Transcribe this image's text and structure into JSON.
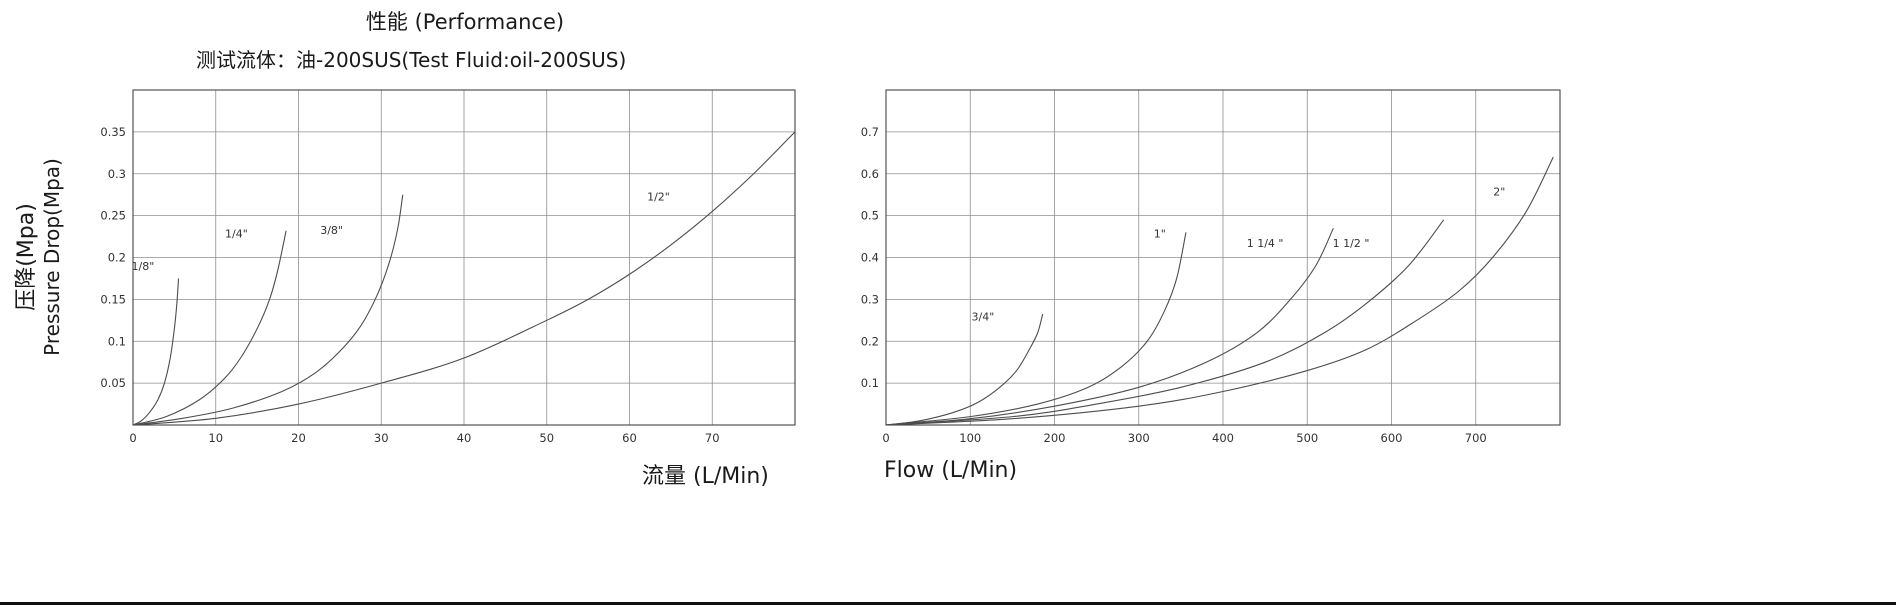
{
  "header": {
    "title": "性能  (Performance)",
    "subtitle": "测试流体：油-200SUS(Test Fluid:oil-200SUS)"
  },
  "axes": {
    "ylabel_cn": "压降(Mpa)",
    "ylabel_en": "Pressure  Drop(Mpa)",
    "xlabel_cn": "流量 (L/Min)",
    "xlabel_en": "Flow (L/Min)"
  },
  "style": {
    "curve_color": "#4d4d4d",
    "grid_color": "#8f8f8f",
    "border_color": "#444444",
    "text_color": "#333333"
  },
  "chart_data": [
    {
      "type": "line",
      "title": "Pressure drop vs flow, small sizes",
      "xlabel": "流量 (L/Min)",
      "ylabel": "压降(Mpa) Pressure Drop(Mpa)",
      "xlim": [
        0,
        80
      ],
      "ylim": [
        0,
        0.4
      ],
      "xticks": [
        0,
        10,
        20,
        30,
        40,
        50,
        60,
        70
      ],
      "yticks": [
        0.05,
        0.1,
        0.15,
        0.2,
        0.25,
        0.3,
        0.35
      ],
      "grid": true,
      "legend_position": "inline-labels",
      "series": [
        {
          "name": "1/8\"",
          "label_at": [
            1.2,
            0.185
          ],
          "points": [
            [
              0,
              0
            ],
            [
              1,
              0.005
            ],
            [
              2,
              0.015
            ],
            [
              3,
              0.03
            ],
            [
              3.8,
              0.05
            ],
            [
              4.5,
              0.08
            ],
            [
              5,
              0.115
            ],
            [
              5.3,
              0.145
            ],
            [
              5.5,
              0.175
            ]
          ]
        },
        {
          "name": "1/4\"",
          "label_at": [
            12.5,
            0.224
          ],
          "points": [
            [
              0,
              0
            ],
            [
              4,
              0.01
            ],
            [
              8,
              0.03
            ],
            [
              11,
              0.055
            ],
            [
              13,
              0.08
            ],
            [
              15,
              0.115
            ],
            [
              16.5,
              0.15
            ],
            [
              17.5,
              0.185
            ],
            [
              18.5,
              0.232
            ]
          ]
        },
        {
          "name": "3/8\"",
          "label_at": [
            24,
            0.228
          ],
          "points": [
            [
              0,
              0
            ],
            [
              6,
              0.008
            ],
            [
              12,
              0.02
            ],
            [
              18,
              0.04
            ],
            [
              22,
              0.062
            ],
            [
              25,
              0.088
            ],
            [
              27.5,
              0.118
            ],
            [
              29.5,
              0.155
            ],
            [
              31,
              0.195
            ],
            [
              32,
              0.235
            ],
            [
              32.6,
              0.275
            ]
          ]
        },
        {
          "name": "1/2\"",
          "label_at": [
            63.5,
            0.268
          ],
          "points": [
            [
              0,
              0
            ],
            [
              10,
              0.008
            ],
            [
              20,
              0.025
            ],
            [
              30,
              0.05
            ],
            [
              40,
              0.08
            ],
            [
              50,
              0.125
            ],
            [
              55,
              0.15
            ],
            [
              60,
              0.18
            ],
            [
              65,
              0.215
            ],
            [
              70,
              0.255
            ],
            [
              75,
              0.3
            ],
            [
              80,
              0.35
            ]
          ]
        }
      ]
    },
    {
      "type": "line",
      "title": "Pressure drop vs flow, large sizes",
      "xlabel": "Flow (L/Min)",
      "ylabel": "压降(Mpa) Pressure Drop(Mpa)",
      "xlim": [
        0,
        800
      ],
      "ylim": [
        0,
        0.8
      ],
      "xticks": [
        0,
        100,
        200,
        300,
        400,
        500,
        600,
        700
      ],
      "yticks": [
        0.1,
        0.2,
        0.3,
        0.4,
        0.5,
        0.6,
        0.7
      ],
      "grid": true,
      "legend_position": "inline-labels",
      "series": [
        {
          "name": "3/4\"",
          "label_at": [
            115,
            0.25
          ],
          "points": [
            [
              0,
              0
            ],
            [
              40,
              0.01
            ],
            [
              80,
              0.03
            ],
            [
              110,
              0.055
            ],
            [
              135,
              0.09
            ],
            [
              155,
              0.13
            ],
            [
              170,
              0.18
            ],
            [
              180,
              0.22
            ],
            [
              186,
              0.265
            ]
          ]
        },
        {
          "name": "1\"",
          "label_at": [
            325,
            0.448
          ],
          "points": [
            [
              0,
              0
            ],
            [
              100,
              0.02
            ],
            [
              180,
              0.05
            ],
            [
              240,
              0.09
            ],
            [
              280,
              0.14
            ],
            [
              310,
              0.2
            ],
            [
              330,
              0.27
            ],
            [
              345,
              0.35
            ],
            [
              356,
              0.46
            ]
          ]
        },
        {
          "name": "1 1/4 \"",
          "label_at": [
            450,
            0.425
          ],
          "points": [
            [
              0,
              0
            ],
            [
              100,
              0.015
            ],
            [
              200,
              0.045
            ],
            [
              300,
              0.09
            ],
            [
              380,
              0.15
            ],
            [
              440,
              0.22
            ],
            [
              480,
              0.3
            ],
            [
              510,
              0.38
            ],
            [
              531,
              0.47
            ]
          ]
        },
        {
          "name": "1 1/2 \"",
          "label_at": [
            552,
            0.425
          ],
          "points": [
            [
              0,
              0
            ],
            [
              150,
              0.02
            ],
            [
              250,
              0.05
            ],
            [
              350,
              0.09
            ],
            [
              450,
              0.15
            ],
            [
              520,
              0.22
            ],
            [
              570,
              0.29
            ],
            [
              620,
              0.38
            ],
            [
              662,
              0.49
            ]
          ]
        },
        {
          "name": "2\"",
          "label_at": [
            728,
            0.548
          ],
          "points": [
            [
              0,
              0
            ],
            [
              150,
              0.015
            ],
            [
              300,
              0.045
            ],
            [
              400,
              0.08
            ],
            [
              500,
              0.13
            ],
            [
              570,
              0.18
            ],
            [
              630,
              0.25
            ],
            [
              680,
              0.32
            ],
            [
              720,
              0.4
            ],
            [
              760,
              0.51
            ],
            [
              792,
              0.64
            ]
          ]
        }
      ]
    }
  ]
}
